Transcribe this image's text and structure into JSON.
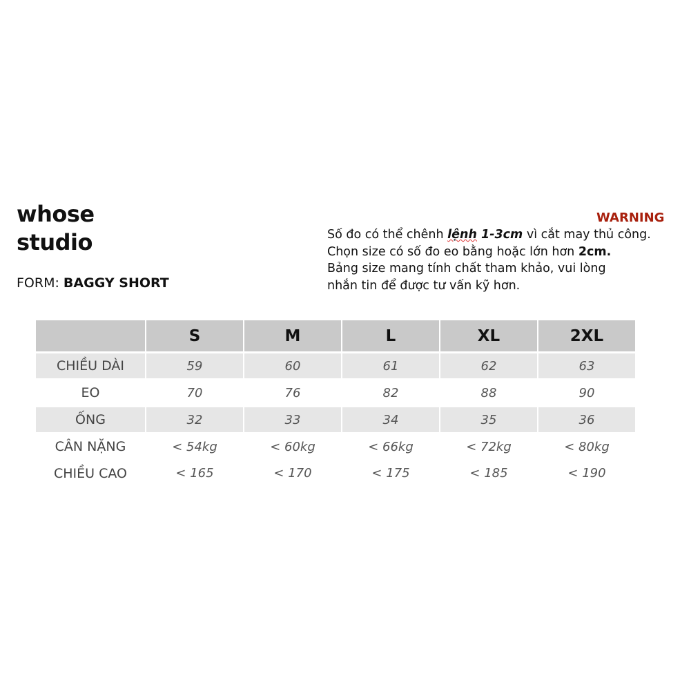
{
  "brand": {
    "line1": "whose",
    "line2": "studio"
  },
  "form": {
    "label": "FORM: ",
    "value": "BAGGY SHORT"
  },
  "warning": {
    "title": "WARNING",
    "line1_a": "Số đo có thể chênh ",
    "line1_b": "lệnh",
    "line1_c": " 1-3cm",
    "line1_d": " vì cắt may thủ công.",
    "line2_a": "Chọn size có số đo eo bằng hoặc lớn hơn ",
    "line2_b": "2cm.",
    "line3": "Bảng size mang tính chất tham khảo, vui lòng",
    "line4": "nhắn tin để được tư vấn kỹ hơn.",
    "color": "#a8200d"
  },
  "table": {
    "sizes": [
      "S",
      "M",
      "L",
      "XL",
      "2XL"
    ],
    "rows": [
      {
        "label": "CHIỀU DÀI",
        "values": [
          "59",
          "60",
          "61",
          "62",
          "63"
        ]
      },
      {
        "label": "EO",
        "values": [
          "70",
          "76",
          "82",
          "88",
          "90"
        ]
      },
      {
        "label": "ỐNG",
        "values": [
          "32",
          "33",
          "34",
          "35",
          "36"
        ]
      },
      {
        "label": "CÂN NẶNG",
        "values": [
          "< 54kg",
          "< 60kg",
          "< 66kg",
          "< 72kg",
          "< 80kg"
        ]
      },
      {
        "label": "CHIỀU CAO",
        "values": [
          "< 165",
          "< 170",
          "< 175",
          "< 185",
          "< 190"
        ]
      }
    ]
  }
}
